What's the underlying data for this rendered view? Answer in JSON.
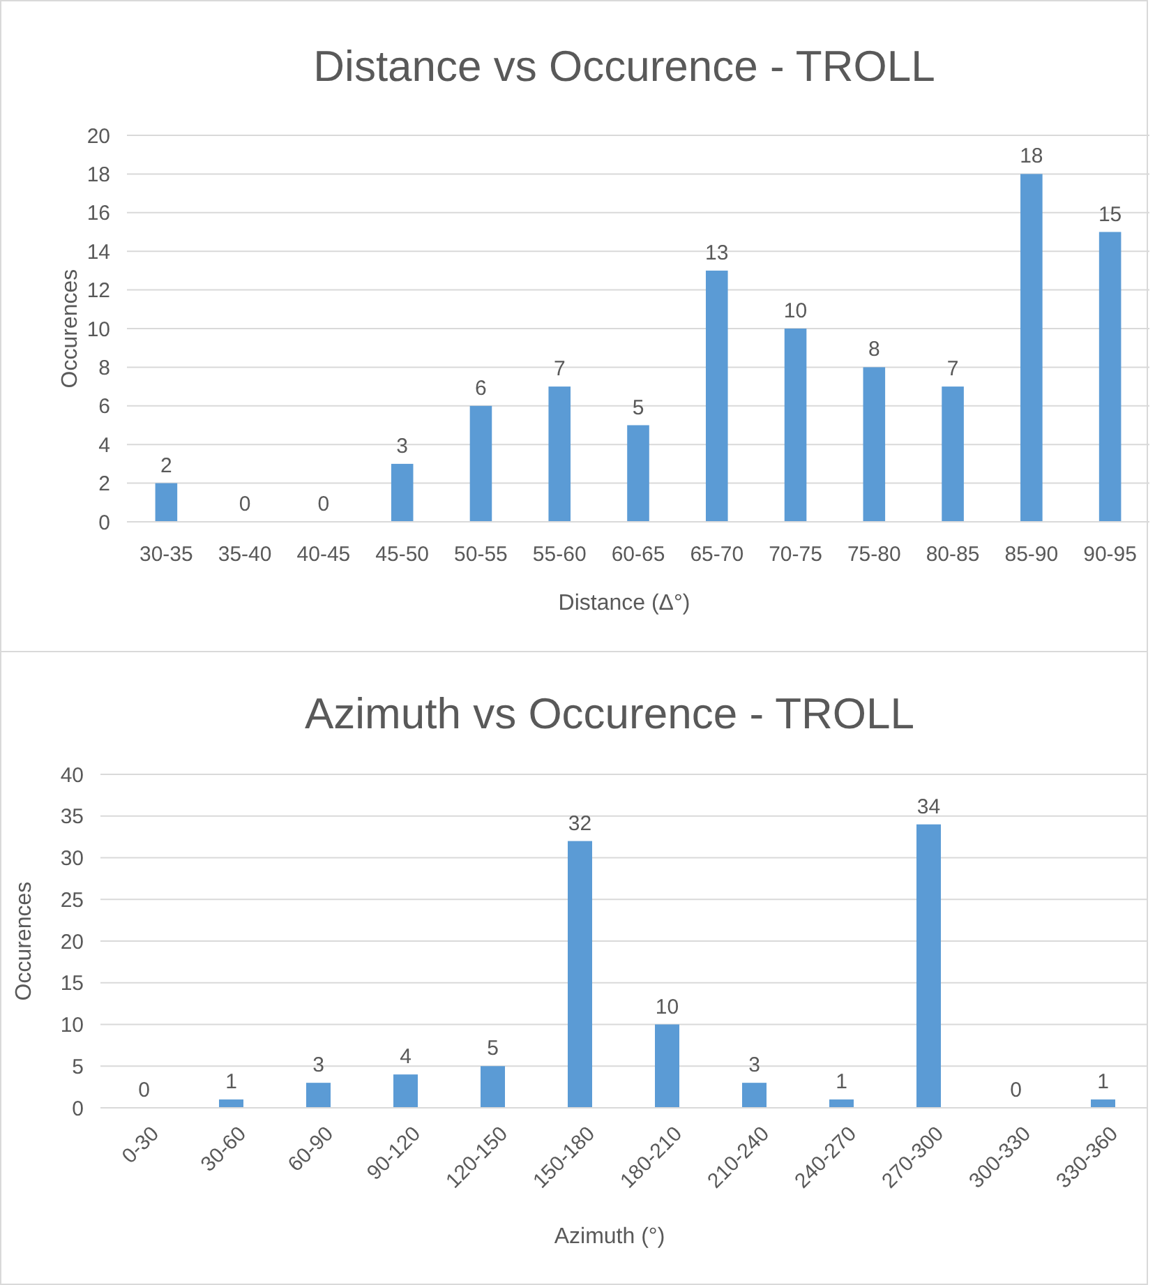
{
  "chart_data": [
    {
      "type": "bar",
      "title": "Distance vs Occurence - TROLL",
      "xlabel": "Distance (Δ°)",
      "ylabel": "Occurences",
      "categories": [
        "30-35",
        "35-40",
        "40-45",
        "45-50",
        "50-55",
        "55-60",
        "60-65",
        "65-70",
        "70-75",
        "75-80",
        "80-85",
        "85-90",
        "90-95"
      ],
      "values": [
        2,
        0,
        0,
        3,
        6,
        7,
        5,
        13,
        10,
        8,
        7,
        18,
        15
      ],
      "color": "#5b9bd5",
      "ylim": [
        0,
        20
      ],
      "yticks": [
        0,
        2,
        4,
        6,
        8,
        10,
        12,
        14,
        16,
        18,
        20
      ],
      "grid": "y",
      "data_labels": true
    },
    {
      "type": "bar",
      "title": "Azimuth vs Occurence - TROLL",
      "xlabel": "Azimuth (°)",
      "ylabel": "Occurences",
      "categories": [
        "0-30",
        "30-60",
        "60-90",
        "90-120",
        "120-150",
        "150-180",
        "180-210",
        "210-240",
        "240-270",
        "270-300",
        "300-330",
        "330-360"
      ],
      "values": [
        0,
        1,
        3,
        4,
        5,
        32,
        10,
        3,
        1,
        34,
        0,
        1
      ],
      "color": "#5b9bd5",
      "ylim": [
        0,
        40
      ],
      "yticks": [
        0,
        5,
        10,
        15,
        20,
        25,
        30,
        35,
        40
      ],
      "grid": "y",
      "data_labels": true
    }
  ]
}
